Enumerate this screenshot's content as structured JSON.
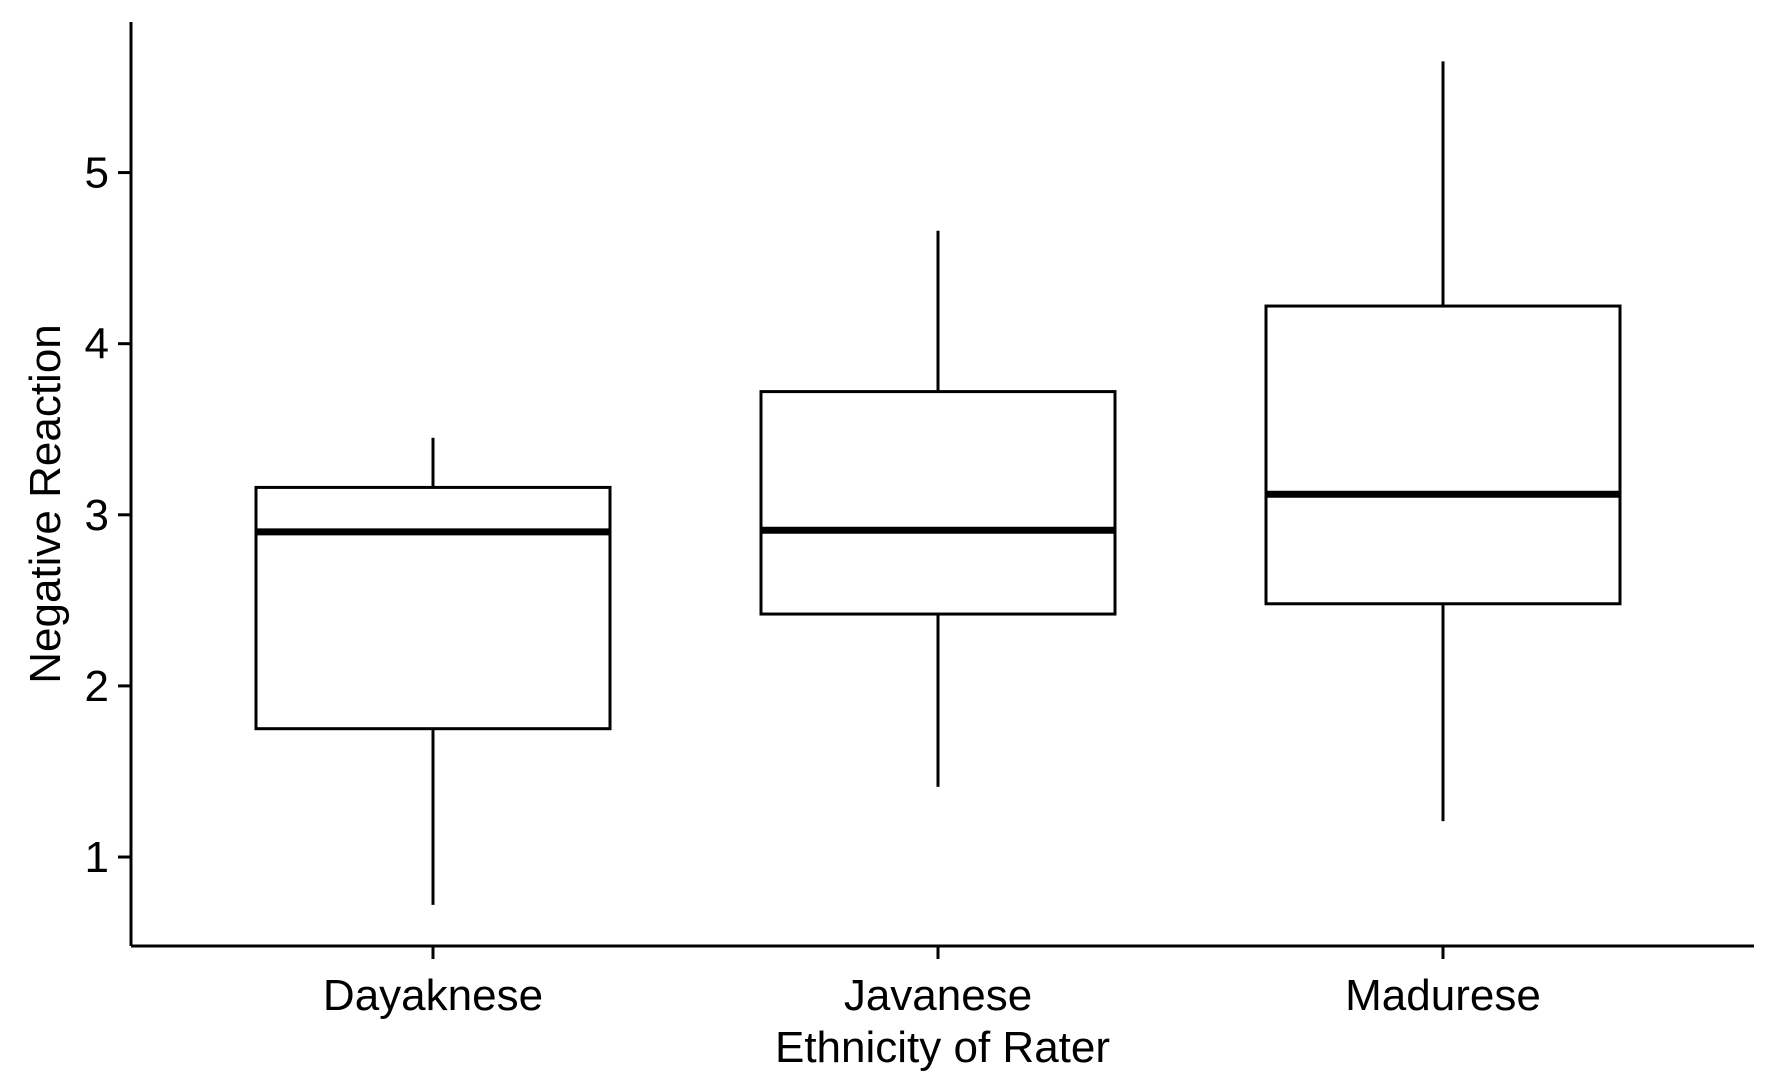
{
  "chart_data": {
    "type": "boxplot",
    "xlabel": "Ethnicity of Rater",
    "ylabel": "Negative Reaction",
    "ylim": [
      0.48,
      5.88
    ],
    "yticks": [
      1,
      2,
      3,
      4,
      5
    ],
    "grid": false,
    "categories": [
      "Dayaknese",
      "Javanese",
      "Madurese"
    ],
    "boxes": [
      {
        "category": "Dayaknese",
        "whisker_low": 0.72,
        "q1": 1.75,
        "median": 2.9,
        "q3": 3.16,
        "whisker_high": 3.45
      },
      {
        "category": "Javanese",
        "whisker_low": 1.41,
        "q1": 2.42,
        "median": 2.91,
        "q3": 3.72,
        "whisker_high": 4.66
      },
      {
        "category": "Madurese",
        "whisker_low": 1.21,
        "q1": 2.48,
        "median": 3.12,
        "q3": 4.22,
        "whisker_high": 5.65
      }
    ]
  }
}
